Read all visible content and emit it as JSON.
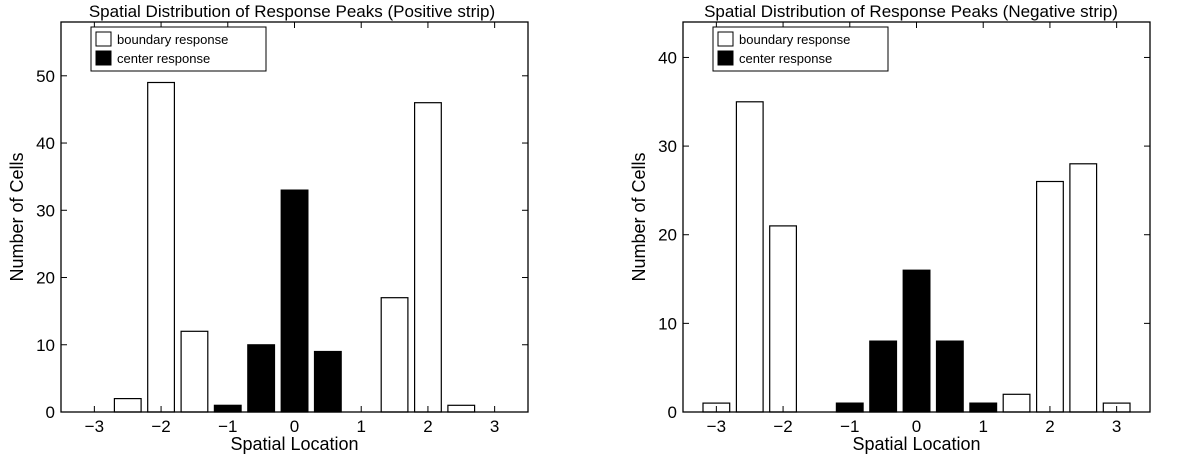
{
  "chart_data": [
    {
      "type": "bar",
      "title": "Spatial Distribution of Response Peaks (Positive strip)",
      "xlabel": "Spatial Location",
      "ylabel": "Number of Cells",
      "xlim": [
        -3.5,
        3.5
      ],
      "ylim": [
        0,
        58
      ],
      "xticks": [
        -3,
        -2,
        -1,
        0,
        1,
        2,
        3
      ],
      "yticks": [
        0,
        10,
        20,
        30,
        40,
        50
      ],
      "grid": false,
      "legend_position": "top-left",
      "series": [
        {
          "name": "boundary response",
          "color": "#ffffff",
          "x": [
            -3,
            -2.5,
            -2,
            -1.5,
            1.5,
            2,
            2.5,
            3
          ],
          "values": [
            0,
            2,
            49,
            12,
            17,
            46,
            1,
            0
          ]
        },
        {
          "name": "center response",
          "color": "#000000",
          "x": [
            -1,
            -0.5,
            0,
            0.5,
            1
          ],
          "values": [
            1,
            10,
            33,
            9,
            0
          ]
        }
      ]
    },
    {
      "type": "bar",
      "title": "Spatial Distribution of Response Peaks (Negative strip)",
      "xlabel": "Spatial Location",
      "ylabel": "Number of Cells",
      "xlim": [
        -3.5,
        3.5
      ],
      "ylim": [
        0,
        44
      ],
      "xticks": [
        -3,
        -2,
        -1,
        0,
        1,
        2,
        3
      ],
      "yticks": [
        0,
        10,
        20,
        30,
        40
      ],
      "grid": false,
      "legend_position": "top-left",
      "series": [
        {
          "name": "boundary response",
          "color": "#ffffff",
          "x": [
            -3,
            -2.5,
            -2,
            -1.5,
            1.5,
            2,
            2.5,
            3
          ],
          "values": [
            1,
            35,
            21,
            0,
            2,
            26,
            28,
            1
          ]
        },
        {
          "name": "center response",
          "color": "#000000",
          "x": [
            -1,
            -0.5,
            0,
            0.5,
            1
          ],
          "values": [
            1,
            8,
            16,
            8,
            1
          ]
        }
      ]
    }
  ]
}
